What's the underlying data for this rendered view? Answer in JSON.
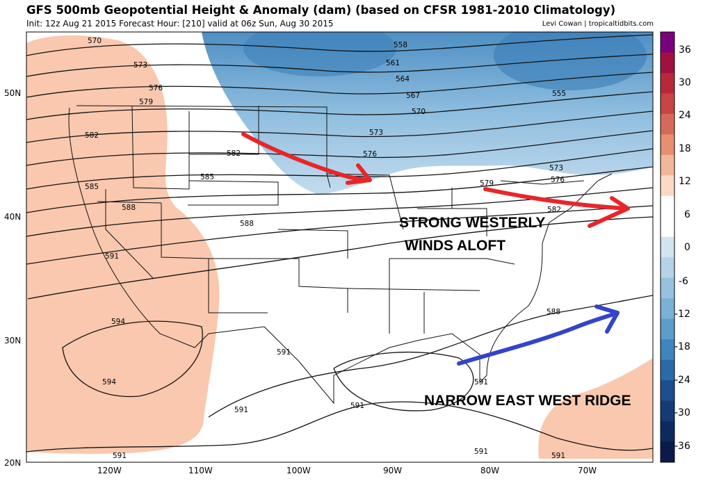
{
  "header": {
    "title": "GFS 500mb Geopotential Height & Anomaly (dam) (based on CFSR 1981-2010 Climatology)",
    "subtitle": "Init: 12z Aug 21 2015   Forecast Hour: [210]   valid at 06z Sun, Aug 30 2015",
    "credit": "Levi Cowan | tropicaltidbits.com"
  },
  "axes": {
    "lon_ticks": [
      "120W",
      "110W",
      "100W",
      "90W",
      "80W",
      "70W"
    ],
    "lat_ticks": [
      "50N",
      "40N",
      "30N",
      "20N"
    ]
  },
  "contour_labels": [
    "570",
    "573",
    "576",
    "579",
    "582",
    "585",
    "588",
    "591",
    "594",
    "594",
    "591",
    "591",
    "591",
    "591",
    "558",
    "561",
    "564",
    "567",
    "570",
    "573",
    "576",
    "582",
    "585",
    "588",
    "579",
    "582",
    "588",
    "573",
    "576",
    "555",
    "591",
    "591",
    "591"
  ],
  "annotations": {
    "westerlies": "STRONG WESTERLY",
    "westerlies2": "WINDS ALOFT",
    "ridge": "NARROW EAST WEST RIDGE"
  },
  "colorbar": {
    "ticks": [
      "36",
      "30",
      "24",
      "18",
      "12",
      "6",
      "0",
      "-6",
      "-12",
      "-18",
      "-24",
      "-30",
      "-36"
    ],
    "colors": [
      "#7b007b",
      "#a01040",
      "#b8283a",
      "#c94444",
      "#d66a58",
      "#e6906f",
      "#f2b79b",
      "#fbd9c4",
      "#ffffff",
      "#ffffff",
      "#d2e4f0",
      "#b4d3e8",
      "#97c2df",
      "#7ab1d6",
      "#5d9dcb",
      "#3f86bc",
      "#2a6aa6",
      "#1d4f8d",
      "#143b75",
      "#0d2a5e",
      "#0a1b4a"
    ],
    "color_semantics": {
      "positive_anomaly": "#f9c8ae",
      "negative_anomaly": "#7fb2d8",
      "zero": "#ffffff"
    }
  },
  "arrows": {
    "westerly_color": "#e8262a",
    "ridge_color": "#3444c8"
  }
}
